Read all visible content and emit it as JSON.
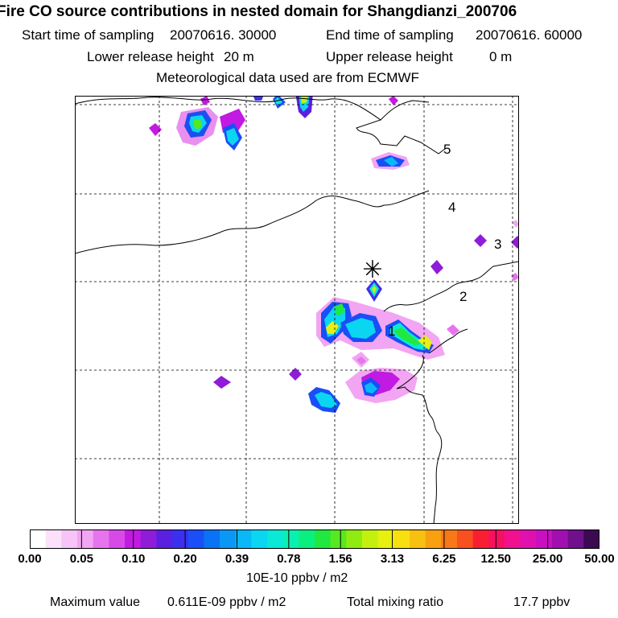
{
  "title": "Fire CO source contributions in nested domain for Shangdianzi_200706",
  "sampling": {
    "start_label": "Start time of sampling",
    "start_value": "20070616. 30000",
    "end_label": "End time of sampling",
    "end_value": "20070616. 60000"
  },
  "release": {
    "lower_label": "Lower release height",
    "lower_value": "20 m",
    "upper_label": "Upper release height",
    "upper_value": "0 m"
  },
  "met_note": "Meteorological data used are from ECMWF",
  "map": {
    "receptor_symbol": "✳",
    "day_labels": [
      "1",
      "2",
      "3",
      "4",
      "5"
    ]
  },
  "colorbar": {
    "colors": [
      "#ffffff",
      "#fbe1fb",
      "#f6c4f6",
      "#f2a5f2",
      "#e674ee",
      "#d84ae8",
      "#c21ae2",
      "#8f1cd8",
      "#5a20e0",
      "#3c30f0",
      "#1a4ef6",
      "#0a72f4",
      "#0a98f6",
      "#0ab8f8",
      "#0ad6f2",
      "#0ae8d8",
      "#0af0b0",
      "#0af080",
      "#20e840",
      "#58e820",
      "#90ec10",
      "#c4f010",
      "#e8f010",
      "#f8e010",
      "#f8c010",
      "#f8a010",
      "#f87818",
      "#f85020",
      "#f82030",
      "#f81060",
      "#f01090",
      "#e010b0",
      "#c810c0",
      "#a010b0",
      "#70108c",
      "#3c0a50"
    ],
    "tick_labels": [
      "0.00",
      "0.05",
      "0.10",
      "0.20",
      "0.39",
      "0.78",
      "1.56",
      "3.13",
      "6.25",
      "12.50",
      "25.00",
      "50.00"
    ],
    "units": "10E-10 ppbv / m2"
  },
  "footer": {
    "max_label": "Maximum value",
    "max_value": "0.611E-09 ppbv / m2",
    "total_label": "Total mixing ratio",
    "total_value": "17.7 ppbv"
  }
}
